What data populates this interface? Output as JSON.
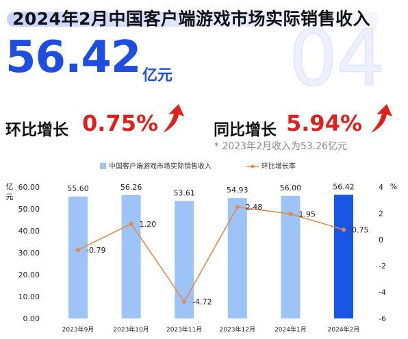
{
  "headline": {
    "title": "2024年2月中国客户端游戏市场实际销售收入",
    "bg_number": "04",
    "revenue_value": "56.42",
    "revenue_unit": "亿元",
    "mom_label": "环比增长",
    "mom_value": "0.75%",
    "yoy_label": "同比增长",
    "yoy_value": "5.94%",
    "note": "* 2023年2月收入为53.26亿元"
  },
  "colors": {
    "bar": "#9ec3f7",
    "bar_highlight": "#1a56e6",
    "line": "#e5894a",
    "accent_red": "#e0201b",
    "accent_blue": "#1c4fe0"
  },
  "chart_data": {
    "type": "bar",
    "categories": [
      "2023年9月",
      "2023年10月",
      "2023年11月",
      "2023年12月",
      "2024年1月",
      "2024年2月"
    ],
    "series": [
      {
        "name": "中国客户端游戏市场实际销售收入",
        "type": "bar",
        "axis": "left",
        "values": [
          55.6,
          56.26,
          53.61,
          54.93,
          56.0,
          56.42
        ],
        "labels": [
          "55.60",
          "56.26",
          "53.61",
          "54.93",
          "56.00",
          "56.42"
        ]
      },
      {
        "name": "环比增长率",
        "type": "line",
        "axis": "right",
        "values": [
          -0.79,
          1.2,
          -4.72,
          2.48,
          1.95,
          0.75
        ],
        "labels": [
          "-0.79",
          "1.20",
          "-4.72",
          "2.48",
          "1.95",
          "0.75"
        ]
      }
    ],
    "y_left": {
      "label": "亿元",
      "min": 0,
      "max": 60,
      "ticks": [
        "0.00",
        "10.00",
        "20.00",
        "30.00",
        "40.00",
        "50.00",
        "60.00"
      ]
    },
    "y_right": {
      "label": "%",
      "min": -6,
      "max": 4,
      "ticks": [
        "-6",
        "-4",
        "-2",
        "0",
        "2",
        "4"
      ]
    },
    "highlight_index": 5,
    "grid": false,
    "legend_position": "top"
  }
}
